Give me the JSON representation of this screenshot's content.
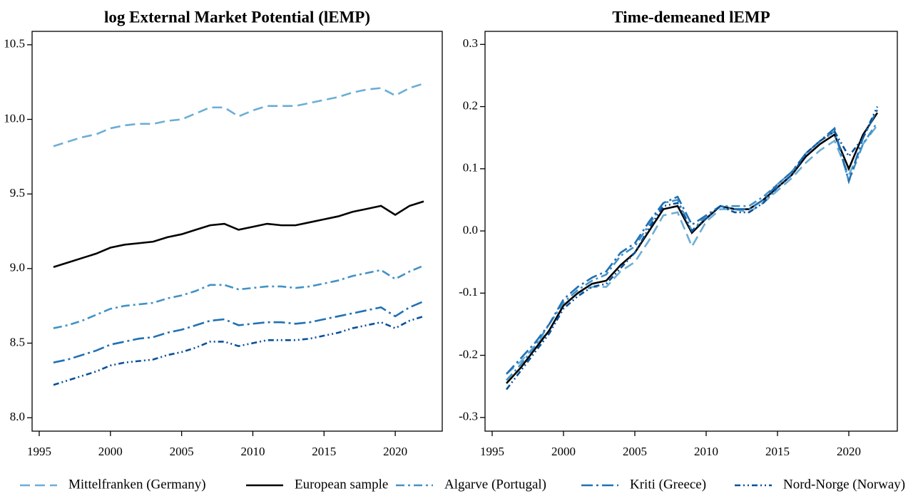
{
  "chart_data": [
    {
      "type": "line",
      "title": "log External Market Potential (lEMP)",
      "x": [
        1996,
        1997,
        1998,
        1999,
        2000,
        2001,
        2002,
        2003,
        2004,
        2005,
        2006,
        2007,
        2008,
        2009,
        2010,
        2011,
        2012,
        2013,
        2014,
        2015,
        2016,
        2017,
        2018,
        2019,
        2020,
        2021,
        2022
      ],
      "xlim": [
        1994.5,
        2023.3
      ],
      "xticks": [
        1995,
        2000,
        2005,
        2010,
        2015,
        2020
      ],
      "ylim": [
        7.91,
        10.59
      ],
      "yticks": [
        {
          "value": 8,
          "label": "8.0"
        },
        8.5,
        {
          "value": 9,
          "label": "9.0"
        },
        9.5,
        {
          "value": 10,
          "label": "10.0"
        },
        10.5
      ],
      "legend": "bottom",
      "series": [
        {
          "name": "Mittelfranken (Germany)",
          "color": "#6baed6",
          "values": [
            9.82,
            9.85,
            9.88,
            9.9,
            9.94,
            9.96,
            9.97,
            9.97,
            9.99,
            10.0,
            10.04,
            10.08,
            10.08,
            10.02,
            10.06,
            10.09,
            10.09,
            10.09,
            10.11,
            10.13,
            10.15,
            10.18,
            10.2,
            10.21,
            10.16,
            10.21,
            10.24
          ]
        },
        {
          "name": "European sample",
          "color": "#000000",
          "values": [
            9.01,
            9.04,
            9.07,
            9.1,
            9.14,
            9.16,
            9.17,
            9.18,
            9.21,
            9.23,
            9.26,
            9.29,
            9.3,
            9.26,
            9.28,
            9.3,
            9.29,
            9.29,
            9.31,
            9.33,
            9.35,
            9.38,
            9.4,
            9.42,
            9.36,
            9.42,
            9.45
          ]
        },
        {
          "name": "Algarve (Portugal)",
          "color": "#4292c6",
          "values": [
            8.6,
            8.62,
            8.65,
            8.69,
            8.73,
            8.75,
            8.76,
            8.77,
            8.8,
            8.82,
            8.85,
            8.89,
            8.89,
            8.86,
            8.87,
            8.88,
            8.88,
            8.87,
            8.88,
            8.9,
            8.92,
            8.95,
            8.97,
            8.99,
            8.93,
            8.98,
            9.02
          ]
        },
        {
          "name": "Kriti (Greece)",
          "color": "#2171b5",
          "values": [
            8.37,
            8.39,
            8.42,
            8.45,
            8.49,
            8.51,
            8.53,
            8.54,
            8.57,
            8.59,
            8.62,
            8.65,
            8.66,
            8.62,
            8.63,
            8.64,
            8.64,
            8.63,
            8.64,
            8.66,
            8.68,
            8.7,
            8.72,
            8.74,
            8.68,
            8.74,
            8.78
          ]
        },
        {
          "name": "Nord-Norge (Norway)",
          "color": "#08519c",
          "values": [
            8.22,
            8.25,
            8.28,
            8.31,
            8.35,
            8.37,
            8.38,
            8.39,
            8.42,
            8.44,
            8.47,
            8.51,
            8.51,
            8.48,
            8.5,
            8.52,
            8.52,
            8.52,
            8.53,
            8.55,
            8.57,
            8.6,
            8.62,
            8.64,
            8.6,
            8.65,
            8.68
          ]
        }
      ]
    },
    {
      "type": "line",
      "title": "Time-demeaned lEMP",
      "x": [
        1996,
        1997,
        1998,
        1999,
        2000,
        2001,
        2002,
        2003,
        2004,
        2005,
        2006,
        2007,
        2008,
        2009,
        2010,
        2011,
        2012,
        2013,
        2014,
        2015,
        2016,
        2017,
        2018,
        2019,
        2020,
        2021,
        2022
      ],
      "xlim": [
        1994.5,
        2023.4
      ],
      "xticks": [
        1995,
        2000,
        2005,
        2010,
        2015,
        2020
      ],
      "ylim": [
        -0.322,
        0.321
      ],
      "yticks": [
        -0.3,
        -0.2,
        -0.1,
        {
          "value": 0,
          "label": "0.0"
        },
        0.1,
        0.2,
        0.3
      ],
      "series": [
        {
          "color": "#6baed6",
          "values": [
            -0.23,
            -0.21,
            -0.185,
            -0.16,
            -0.12,
            -0.1,
            -0.09,
            -0.09,
            -0.065,
            -0.05,
            -0.015,
            0.025,
            0.03,
            -0.025,
            0.015,
            0.035,
            0.035,
            0.03,
            0.045,
            0.065,
            0.085,
            0.11,
            0.13,
            0.145,
            0.09,
            0.14,
            0.17
          ]
        },
        {
          "color": "#000000",
          "values": [
            -0.245,
            -0.22,
            -0.19,
            -0.16,
            -0.12,
            -0.1,
            -0.085,
            -0.08,
            -0.055,
            -0.035,
            0.0,
            0.035,
            0.04,
            -0.003,
            0.02,
            0.04,
            0.035,
            0.035,
            0.05,
            0.07,
            0.09,
            0.12,
            0.14,
            0.155,
            0.1,
            0.155,
            0.19
          ]
        },
        {
          "color": "#4292c6",
          "values": [
            -0.24,
            -0.215,
            -0.185,
            -0.15,
            -0.115,
            -0.095,
            -0.08,
            -0.07,
            -0.04,
            -0.025,
            0.01,
            0.045,
            0.05,
            0.0,
            0.025,
            0.04,
            0.04,
            0.04,
            0.055,
            0.075,
            0.095,
            0.125,
            0.145,
            0.16,
            0.08,
            0.14,
            0.175
          ]
        },
        {
          "color": "#2171b5",
          "values": [
            -0.23,
            -0.205,
            -0.18,
            -0.15,
            -0.11,
            -0.09,
            -0.075,
            -0.065,
            -0.035,
            -0.02,
            0.015,
            0.045,
            0.055,
            0.01,
            0.025,
            0.04,
            0.035,
            0.035,
            0.05,
            0.075,
            0.095,
            0.125,
            0.145,
            0.165,
            0.08,
            0.15,
            0.195
          ]
        },
        {
          "color": "#08519c",
          "values": [
            -0.255,
            -0.225,
            -0.195,
            -0.165,
            -0.125,
            -0.105,
            -0.09,
            -0.085,
            -0.06,
            -0.035,
            0.005,
            0.04,
            0.045,
            0.0,
            0.02,
            0.04,
            0.03,
            0.03,
            0.045,
            0.07,
            0.09,
            0.125,
            0.145,
            0.16,
            0.12,
            0.15,
            0.2
          ]
        }
      ]
    }
  ]
}
